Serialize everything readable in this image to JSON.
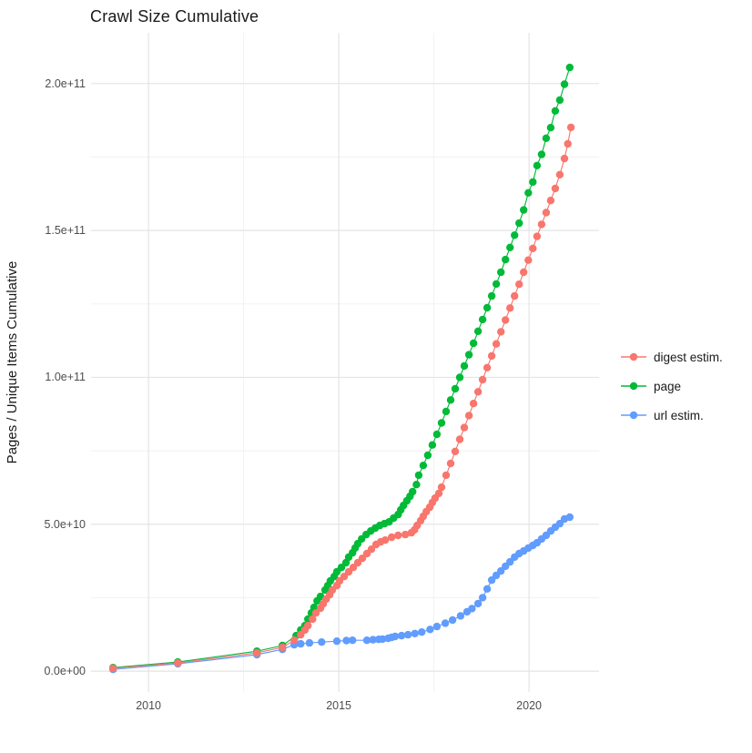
{
  "figure": {
    "background": "#ffffff",
    "text_color": "#1a1a1a",
    "tick_label_color": "#4d4d4d",
    "grid_major_color": "#e4e4e4",
    "grid_minor_color": "#f1f1f1"
  },
  "chart_data": {
    "type": "scatter",
    "title": "Crawl Size Cumulative",
    "xlabel": "",
    "ylabel": "Pages / Unique Items Cumulative",
    "legend_position": "right",
    "grid": true,
    "unit": "1e9 pages (values stored in billions)",
    "xlim": [
      2008.49,
      2021.84
    ],
    "ylim": [
      -7.1,
      217.3
    ],
    "x_ticks": [
      {
        "value": 2010,
        "label": "2010"
      },
      {
        "value": 2015,
        "label": "2015"
      },
      {
        "value": 2020,
        "label": "2020"
      }
    ],
    "x_minor": [
      2012.5,
      2017.5
    ],
    "y_ticks": [
      {
        "value": 0,
        "label": "0.0e+00"
      },
      {
        "value": 50,
        "label": "5.0e+10"
      },
      {
        "value": 100,
        "label": "1.0e+11"
      },
      {
        "value": 150,
        "label": "1.5e+11"
      },
      {
        "value": 200,
        "label": "2.0e+11"
      }
    ],
    "y_minor": [
      25,
      75,
      125,
      175
    ],
    "draw_order": [
      "page",
      "url estim.",
      "digest estim."
    ],
    "series": [
      {
        "name": "digest estim.",
        "color": "#F8766D",
        "points": [
          [
            2009.07,
            1.0
          ],
          [
            2010.77,
            2.8
          ],
          [
            2012.85,
            6.2
          ],
          [
            2013.52,
            8.1
          ],
          [
            2013.83,
            10.5
          ],
          [
            2014.0,
            12.4
          ],
          [
            2014.11,
            14.0
          ],
          [
            2014.19,
            15.5
          ],
          [
            2014.31,
            17.7
          ],
          [
            2014.4,
            19.8
          ],
          [
            2014.52,
            21.4
          ],
          [
            2014.59,
            22.9
          ],
          [
            2014.67,
            24.5
          ],
          [
            2014.76,
            26.0
          ],
          [
            2014.83,
            27.6
          ],
          [
            2014.95,
            29.1
          ],
          [
            2015.02,
            30.7
          ],
          [
            2015.14,
            32.2
          ],
          [
            2015.26,
            33.8
          ],
          [
            2015.38,
            35.3
          ],
          [
            2015.5,
            36.9
          ],
          [
            2015.62,
            38.4
          ],
          [
            2015.74,
            40.0
          ],
          [
            2015.86,
            41.5
          ],
          [
            2015.98,
            43.1
          ],
          [
            2016.1,
            44.0
          ],
          [
            2016.22,
            44.6
          ],
          [
            2016.39,
            45.6
          ],
          [
            2016.56,
            46.2
          ],
          [
            2016.75,
            46.5
          ],
          [
            2016.91,
            47.1
          ],
          [
            2016.99,
            48.1
          ],
          [
            2017.06,
            49.6
          ],
          [
            2017.15,
            51.2
          ],
          [
            2017.22,
            52.7
          ],
          [
            2017.3,
            54.3
          ],
          [
            2017.39,
            55.8
          ],
          [
            2017.46,
            57.4
          ],
          [
            2017.53,
            58.9
          ],
          [
            2017.63,
            60.5
          ],
          [
            2017.7,
            62.6
          ],
          [
            2017.82,
            66.7
          ],
          [
            2017.94,
            70.7
          ],
          [
            2018.06,
            74.8
          ],
          [
            2018.18,
            78.9
          ],
          [
            2018.3,
            82.9
          ],
          [
            2018.42,
            87.0
          ],
          [
            2018.54,
            91.1
          ],
          [
            2018.66,
            95.1
          ],
          [
            2018.78,
            99.2
          ],
          [
            2018.9,
            103.3
          ],
          [
            2019.02,
            107.3
          ],
          [
            2019.14,
            111.4
          ],
          [
            2019.26,
            115.5
          ],
          [
            2019.38,
            119.5
          ],
          [
            2019.5,
            123.6
          ],
          [
            2019.62,
            127.7
          ],
          [
            2019.74,
            131.7
          ],
          [
            2019.86,
            135.8
          ],
          [
            2019.98,
            139.9
          ],
          [
            2020.1,
            143.9
          ],
          [
            2020.21,
            148.0
          ],
          [
            2020.33,
            152.1
          ],
          [
            2020.45,
            156.1
          ],
          [
            2020.57,
            160.2
          ],
          [
            2020.69,
            164.3
          ],
          [
            2020.81,
            169.0
          ],
          [
            2020.93,
            174.5
          ],
          [
            2021.02,
            179.5
          ],
          [
            2021.1,
            185.1
          ]
        ]
      },
      {
        "name": "page",
        "color": "#00BA38",
        "points": [
          [
            2009.07,
            1.2
          ],
          [
            2010.77,
            3.1
          ],
          [
            2012.85,
            6.8
          ],
          [
            2013.52,
            8.7
          ],
          [
            2013.88,
            12.1
          ],
          [
            2014.0,
            14.0
          ],
          [
            2014.11,
            15.5
          ],
          [
            2014.19,
            17.7
          ],
          [
            2014.28,
            19.8
          ],
          [
            2014.35,
            21.7
          ],
          [
            2014.43,
            23.9
          ],
          [
            2014.52,
            25.4
          ],
          [
            2014.64,
            27.6
          ],
          [
            2014.71,
            29.1
          ],
          [
            2014.78,
            30.7
          ],
          [
            2014.88,
            32.2
          ],
          [
            2014.95,
            33.8
          ],
          [
            2015.07,
            35.3
          ],
          [
            2015.19,
            36.9
          ],
          [
            2015.26,
            38.8
          ],
          [
            2015.36,
            40.3
          ],
          [
            2015.43,
            41.9
          ],
          [
            2015.5,
            43.4
          ],
          [
            2015.6,
            45.0
          ],
          [
            2015.72,
            46.5
          ],
          [
            2015.84,
            47.7
          ],
          [
            2015.96,
            48.7
          ],
          [
            2016.08,
            49.6
          ],
          [
            2016.2,
            50.2
          ],
          [
            2016.32,
            50.8
          ],
          [
            2016.44,
            52.1
          ],
          [
            2016.56,
            53.3
          ],
          [
            2016.63,
            54.9
          ],
          [
            2016.7,
            56.4
          ],
          [
            2016.79,
            58.0
          ],
          [
            2016.87,
            59.5
          ],
          [
            2016.94,
            61.1
          ],
          [
            2017.04,
            63.5
          ],
          [
            2017.1,
            66.7
          ],
          [
            2017.22,
            70.0
          ],
          [
            2017.34,
            73.5
          ],
          [
            2017.46,
            77.0
          ],
          [
            2017.58,
            80.6
          ],
          [
            2017.7,
            84.5
          ],
          [
            2017.82,
            88.4
          ],
          [
            2017.94,
            92.3
          ],
          [
            2018.06,
            96.1
          ],
          [
            2018.18,
            100.0
          ],
          [
            2018.3,
            103.9
          ],
          [
            2018.42,
            107.7
          ],
          [
            2018.54,
            111.6
          ],
          [
            2018.66,
            115.7
          ],
          [
            2018.78,
            119.7
          ],
          [
            2018.9,
            123.7
          ],
          [
            2019.02,
            127.7
          ],
          [
            2019.14,
            131.8
          ],
          [
            2019.26,
            135.8
          ],
          [
            2019.38,
            140.1
          ],
          [
            2019.5,
            144.2
          ],
          [
            2019.62,
            148.4
          ],
          [
            2019.74,
            152.5
          ],
          [
            2019.86,
            157.0
          ],
          [
            2019.98,
            162.8
          ],
          [
            2020.1,
            166.5
          ],
          [
            2020.21,
            172.1
          ],
          [
            2020.33,
            175.9
          ],
          [
            2020.45,
            181.4
          ],
          [
            2020.57,
            185.0
          ],
          [
            2020.69,
            190.7
          ],
          [
            2020.81,
            194.4
          ],
          [
            2020.93,
            199.8
          ],
          [
            2021.07,
            205.5
          ]
        ]
      },
      {
        "name": "url estim.",
        "color": "#619CFF",
        "points": [
          [
            2009.07,
            0.6
          ],
          [
            2010.77,
            2.5
          ],
          [
            2012.85,
            5.6
          ],
          [
            2013.52,
            7.4
          ],
          [
            2013.83,
            9.0
          ],
          [
            2014.0,
            9.3
          ],
          [
            2014.23,
            9.6
          ],
          [
            2014.55,
            9.9
          ],
          [
            2014.95,
            10.2
          ],
          [
            2015.2,
            10.4
          ],
          [
            2015.36,
            10.5
          ],
          [
            2015.74,
            10.5
          ],
          [
            2015.9,
            10.7
          ],
          [
            2016.05,
            10.8
          ],
          [
            2016.15,
            10.9
          ],
          [
            2016.3,
            11.2
          ],
          [
            2016.39,
            11.5
          ],
          [
            2016.48,
            11.8
          ],
          [
            2016.65,
            12.1
          ],
          [
            2016.82,
            12.4
          ],
          [
            2017.0,
            12.8
          ],
          [
            2017.18,
            13.3
          ],
          [
            2017.4,
            14.2
          ],
          [
            2017.58,
            15.2
          ],
          [
            2017.8,
            16.3
          ],
          [
            2017.99,
            17.4
          ],
          [
            2018.2,
            18.8
          ],
          [
            2018.37,
            20.2
          ],
          [
            2018.5,
            21.3
          ],
          [
            2018.66,
            23.0
          ],
          [
            2018.78,
            25.0
          ],
          [
            2018.9,
            28.0
          ],
          [
            2019.02,
            31.0
          ],
          [
            2019.14,
            32.6
          ],
          [
            2019.26,
            34.1
          ],
          [
            2019.38,
            35.7
          ],
          [
            2019.5,
            37.2
          ],
          [
            2019.62,
            38.8
          ],
          [
            2019.74,
            40.0
          ],
          [
            2019.86,
            40.9
          ],
          [
            2019.98,
            41.9
          ],
          [
            2020.1,
            42.8
          ],
          [
            2020.21,
            43.7
          ],
          [
            2020.33,
            45.0
          ],
          [
            2020.45,
            46.2
          ],
          [
            2020.57,
            47.7
          ],
          [
            2020.69,
            49.0
          ],
          [
            2020.81,
            50.2
          ],
          [
            2020.93,
            51.8
          ],
          [
            2021.07,
            52.4
          ]
        ]
      }
    ]
  }
}
